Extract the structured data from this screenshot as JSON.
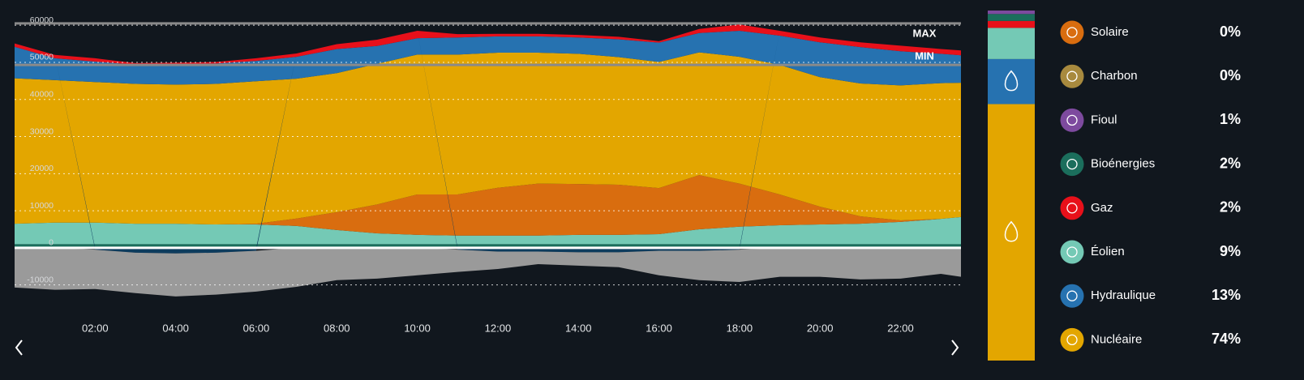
{
  "chart_data": [
    {
      "type": "area",
      "x": [
        0,
        1,
        2,
        3,
        4,
        5,
        6,
        7,
        8,
        9,
        10,
        11,
        12,
        13,
        14,
        15,
        16,
        17,
        18,
        19,
        20,
        21,
        22,
        23,
        23.5
      ],
      "xlim": [
        0,
        23.5
      ],
      "xticks": [
        {
          "value": 2,
          "label": "02:00"
        },
        {
          "value": 4,
          "label": "04:00"
        },
        {
          "value": 6,
          "label": "06:00"
        },
        {
          "value": 8,
          "label": "08:00"
        },
        {
          "value": 10,
          "label": "10:00"
        },
        {
          "value": 12,
          "label": "12:00"
        },
        {
          "value": 14,
          "label": "14:00"
        },
        {
          "value": 16,
          "label": "16:00"
        },
        {
          "value": 18,
          "label": "18:00"
        },
        {
          "value": 20,
          "label": "20:00"
        },
        {
          "value": 22,
          "label": "22:00"
        }
      ],
      "ylim": [
        -14000,
        62000
      ],
      "yticks": [
        -10000,
        0,
        10000,
        20000,
        30000,
        40000,
        50000,
        60000
      ],
      "grid": true,
      "reference_lines": [
        {
          "label": "MAX",
          "value": 60500
        },
        {
          "label": "MIN",
          "value": 49300
        }
      ],
      "series": [
        {
          "color": "#1b6e5c",
          "values": [
            1000,
            1000,
            1000,
            1000,
            1000,
            1000,
            1000,
            1000,
            1000,
            1000,
            1000,
            1000,
            1000,
            1000,
            1000,
            1000,
            1000,
            1000,
            1000,
            1000,
            1000,
            1000,
            1000,
            1000,
            1000
          ]
        },
        {
          "color": "#74c9b5",
          "values": [
            5500,
            5800,
            5800,
            5500,
            5500,
            5300,
            5300,
            4900,
            3800,
            2900,
            2500,
            2300,
            2300,
            2300,
            2500,
            2500,
            2700,
            4000,
            4700,
            5100,
            5300,
            5500,
            6000,
            6800,
            7300
          ]
        },
        {
          "color": "#d96d0f",
          "values": [
            0,
            0,
            0,
            0,
            0,
            0,
            200,
            2000,
            4800,
            7800,
            10900,
            11100,
            12900,
            14000,
            13700,
            13500,
            12400,
            14600,
            11600,
            8300,
            4800,
            2000,
            400,
            0,
            0
          ]
        },
        {
          "color": "#e3a600",
          "values": [
            39200,
            38400,
            37900,
            37700,
            37500,
            37900,
            38400,
            37700,
            37500,
            37900,
            37700,
            37700,
            36400,
            35300,
            35100,
            34400,
            34000,
            33100,
            34200,
            34900,
            34900,
            35800,
            36400,
            36600,
            36200
          ]
        },
        {
          "color": "#2672b0",
          "values": [
            8500,
            5900,
            5500,
            5200,
            5500,
            5500,
            5500,
            5900,
            6500,
            4800,
            4400,
            4600,
            4400,
            4400,
            4400,
            4800,
            5200,
            5200,
            7000,
            7900,
            9400,
            9800,
            9200,
            7900,
            7400
          ]
        },
        {
          "color": "#e8101a",
          "values": [
            900,
            900,
            900,
            400,
            400,
            400,
            700,
            900,
            1300,
            1700,
            2000,
            900,
            700,
            700,
            700,
            700,
            400,
            1100,
            1700,
            1300,
            1300,
            1300,
            1500,
            1300,
            1300
          ]
        },
        {
          "color": "#0d3c5e",
          "values": [
            0,
            0,
            -500,
            -1300,
            -1500,
            -1300,
            -800,
            0,
            0,
            0,
            0,
            -500,
            -1000,
            -1000,
            -1200,
            -1200,
            -800,
            -800,
            -500,
            0,
            0,
            0,
            0,
            0,
            0
          ]
        },
        {
          "color": "#9a9a9a",
          "values": [
            -10700,
            -11300,
            -10600,
            -10900,
            -11600,
            -11300,
            -11000,
            -10500,
            -8700,
            -8300,
            -7400,
            -6000,
            -4700,
            -3400,
            -3600,
            -4000,
            -6600,
            -7900,
            -8700,
            -7800,
            -7800,
            -8500,
            -8300,
            -7000,
            -7800
          ]
        }
      ]
    },
    {
      "type": "stackedbar",
      "series": [
        {
          "name": "Solaire",
          "color": "#d96d0f",
          "values": [
            0
          ],
          "value_labels": [
            "0%"
          ]
        },
        {
          "name": "Charbon",
          "color": "#a88a3e",
          "values": [
            0
          ],
          "value_labels": [
            "0%"
          ]
        },
        {
          "name": "Fioul",
          "color": "#7d4a9e",
          "values": [
            1
          ],
          "value_labels": [
            "1%"
          ]
        },
        {
          "name": "Bioénergies",
          "color": "#1b6e5c",
          "values": [
            2
          ],
          "value_labels": [
            "2%"
          ]
        },
        {
          "name": "Gaz",
          "color": "#e8101a",
          "values": [
            2
          ],
          "value_labels": [
            "2%"
          ]
        },
        {
          "name": "Éolien",
          "color": "#74c9b5",
          "values": [
            9
          ],
          "value_labels": [
            "9%"
          ]
        },
        {
          "name": "Hydraulique",
          "color": "#2672b0",
          "values": [
            13
          ],
          "value_labels": [
            "13%"
          ]
        },
        {
          "name": "Nucléaire",
          "color": "#e3a600",
          "values": [
            74
          ],
          "value_labels": [
            "74%"
          ]
        }
      ]
    }
  ]
}
